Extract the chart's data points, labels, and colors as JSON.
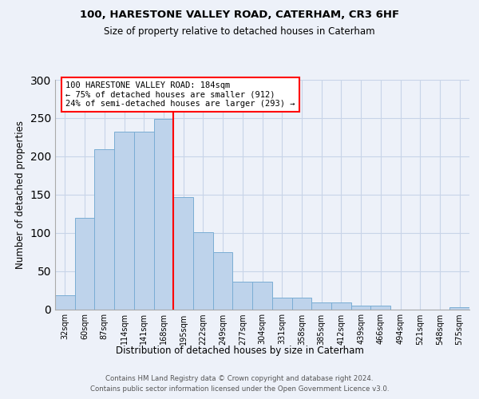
{
  "title_line1": "100, HARESTONE VALLEY ROAD, CATERHAM, CR3 6HF",
  "title_line2": "Size of property relative to detached houses in Caterham",
  "xlabel": "Distribution of detached houses by size in Caterham",
  "ylabel": "Number of detached properties",
  "categories": [
    "32sqm",
    "60sqm",
    "87sqm",
    "114sqm",
    "141sqm",
    "168sqm",
    "195sqm",
    "222sqm",
    "249sqm",
    "277sqm",
    "304sqm",
    "331sqm",
    "358sqm",
    "385sqm",
    "412sqm",
    "439sqm",
    "466sqm",
    "494sqm",
    "521sqm",
    "548sqm",
    "575sqm"
  ],
  "values": [
    18,
    120,
    209,
    232,
    232,
    249,
    147,
    101,
    75,
    36,
    36,
    15,
    15,
    9,
    9,
    5,
    5,
    0,
    0,
    0,
    3
  ],
  "bar_color": "#bed3eb",
  "bar_edge_color": "#7aadd4",
  "grid_color": "#c8d4e8",
  "vline_x": 5.5,
  "vline_color": "red",
  "annotation_line1": "100 HARESTONE VALLEY ROAD: 184sqm",
  "annotation_line2": "← 75% of detached houses are smaller (912)",
  "annotation_line3": "24% of semi-detached houses are larger (293) →",
  "annotation_box_facecolor": "white",
  "annotation_box_edgecolor": "red",
  "background_color": "#edf1f9",
  "footer_line1": "Contains HM Land Registry data © Crown copyright and database right 2024.",
  "footer_line2": "Contains public sector information licensed under the Open Government Licence v3.0.",
  "ylim": [
    0,
    300
  ],
  "yticks": [
    0,
    50,
    100,
    150,
    200,
    250,
    300
  ]
}
